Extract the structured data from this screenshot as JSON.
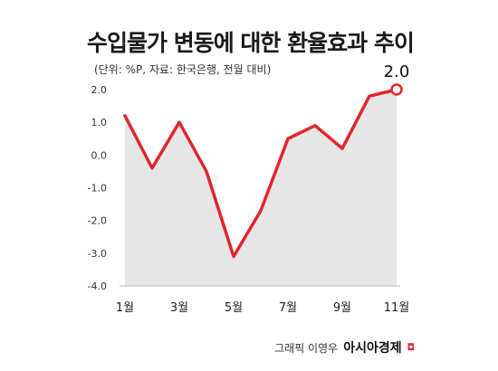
{
  "title": "수입물가 변동에 대한 환율효과 추이",
  "subtitle": "(단위: %P, 자료: 한국은행, 전월 대비)",
  "colors": {
    "line": "#e0262c",
    "area": "#e6e6e6",
    "last_marker_fill": "#ffffff"
  },
  "chart_data": {
    "type": "area",
    "x": [
      "1월",
      "2월",
      "3월",
      "4월",
      "5월",
      "6월",
      "7월",
      "8월",
      "9월",
      "10월",
      "11월"
    ],
    "values": [
      1.2,
      -0.4,
      1.0,
      -0.5,
      -3.1,
      -1.7,
      0.5,
      0.9,
      0.2,
      1.8,
      2.0
    ],
    "x_tick_labels": [
      "1월",
      "3월",
      "5월",
      "7월",
      "9월",
      "11월"
    ],
    "y_ticks": [
      2.0,
      1.0,
      0.0,
      -1.0,
      -2.0,
      -3.0,
      -4.0
    ],
    "y_tick_labels": [
      "2.0",
      "1.0",
      "0.0",
      "-1.0",
      "-2.0",
      "-3.0",
      "-4.0"
    ],
    "ylim": [
      -4.0,
      2.0
    ],
    "annotation": "2.0",
    "grid": false
  },
  "credit": {
    "text": "그래픽 이영우",
    "brand": "아시아경제",
    "brand_mark": "◘"
  }
}
